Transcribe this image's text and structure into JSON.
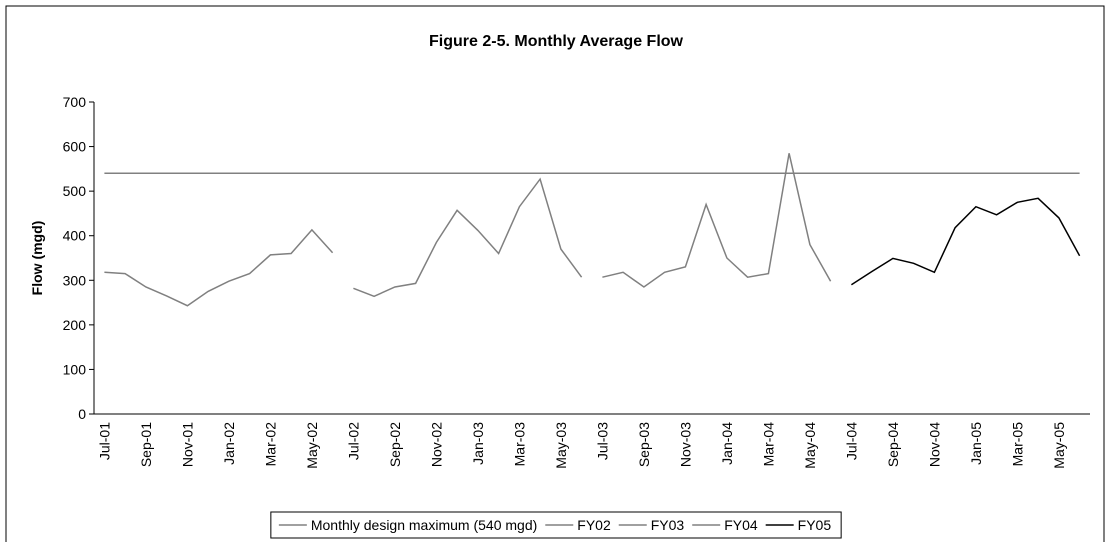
{
  "chart_data": {
    "type": "line",
    "title": "Figure 2-5.  Monthly Average Flow",
    "y_label": "Flow (mgd)",
    "categories": [
      "Jul-01",
      null,
      "Sep-01",
      null,
      "Nov-01",
      null,
      "Jan-02",
      null,
      "Mar-02",
      null,
      "May-02",
      null,
      "Jul-02",
      null,
      "Sep-02",
      null,
      "Nov-02",
      null,
      "Jan-03",
      null,
      "Mar-03",
      null,
      "May-03",
      null,
      "Jul-03",
      null,
      "Sep-03",
      null,
      "Nov-03",
      null,
      "Jan-04",
      null,
      "Mar-04",
      null,
      "May-04",
      null,
      "Jul-04",
      null,
      "Sep-04",
      null,
      "Nov-04",
      null,
      "Jan-05",
      null,
      "Mar-05",
      null,
      "May-05",
      null
    ],
    "series": [
      {
        "name": "Monthly design maximum (540 mgd)",
        "color": "#808080",
        "values": [
          540,
          540,
          540,
          540,
          540,
          540,
          540,
          540,
          540,
          540,
          540,
          540,
          540,
          540,
          540,
          540,
          540,
          540,
          540,
          540,
          540,
          540,
          540,
          540,
          540,
          540,
          540,
          540,
          540,
          540,
          540,
          540,
          540,
          540,
          540,
          540,
          540,
          540,
          540,
          540,
          540,
          540,
          540,
          540,
          540,
          540,
          540,
          540
        ]
      },
      {
        "name": "FY02",
        "color": "#808080",
        "values": [
          318,
          315,
          285,
          265,
          243,
          275,
          298,
          315,
          357,
          360,
          413,
          362,
          null,
          null,
          null,
          null,
          null,
          null,
          null,
          null,
          null,
          null,
          null,
          null,
          null,
          null,
          null,
          null,
          null,
          null,
          null,
          null,
          null,
          null,
          null,
          null,
          null,
          null,
          null,
          null,
          null,
          null,
          null,
          null,
          null,
          null,
          null,
          null
        ]
      },
      {
        "name": "FY03",
        "color": "#808080",
        "values": [
          null,
          null,
          null,
          null,
          null,
          null,
          null,
          null,
          null,
          null,
          null,
          null,
          282,
          264,
          285,
          293,
          385,
          457,
          412,
          360,
          465,
          527,
          370,
          307,
          null,
          null,
          null,
          null,
          null,
          null,
          null,
          null,
          null,
          null,
          null,
          null,
          null,
          null,
          null,
          null,
          null,
          null,
          null,
          null,
          null,
          null,
          null,
          null
        ]
      },
      {
        "name": "FY04",
        "color": "#808080",
        "values": [
          null,
          null,
          null,
          null,
          null,
          null,
          null,
          null,
          null,
          null,
          null,
          null,
          null,
          null,
          null,
          null,
          null,
          null,
          null,
          null,
          null,
          null,
          null,
          null,
          307,
          318,
          285,
          318,
          330,
          470,
          350,
          307,
          315,
          585,
          380,
          298,
          null,
          null,
          null,
          null,
          null,
          null,
          null,
          null,
          null,
          null,
          null,
          null
        ]
      },
      {
        "name": "FY05",
        "color": "#000000",
        "values": [
          null,
          null,
          null,
          null,
          null,
          null,
          null,
          null,
          null,
          null,
          null,
          null,
          null,
          null,
          null,
          null,
          null,
          null,
          null,
          null,
          null,
          null,
          null,
          null,
          null,
          null,
          null,
          null,
          null,
          null,
          null,
          null,
          null,
          null,
          null,
          null,
          290,
          320,
          349,
          338,
          318,
          418,
          465,
          447,
          475,
          484,
          440,
          355
        ]
      }
    ],
    "ylim": [
      0,
      700
    ],
    "yticks": [
      0,
      100,
      200,
      300,
      400,
      500,
      600,
      700
    ],
    "grid": false,
    "legend": "bottom"
  }
}
